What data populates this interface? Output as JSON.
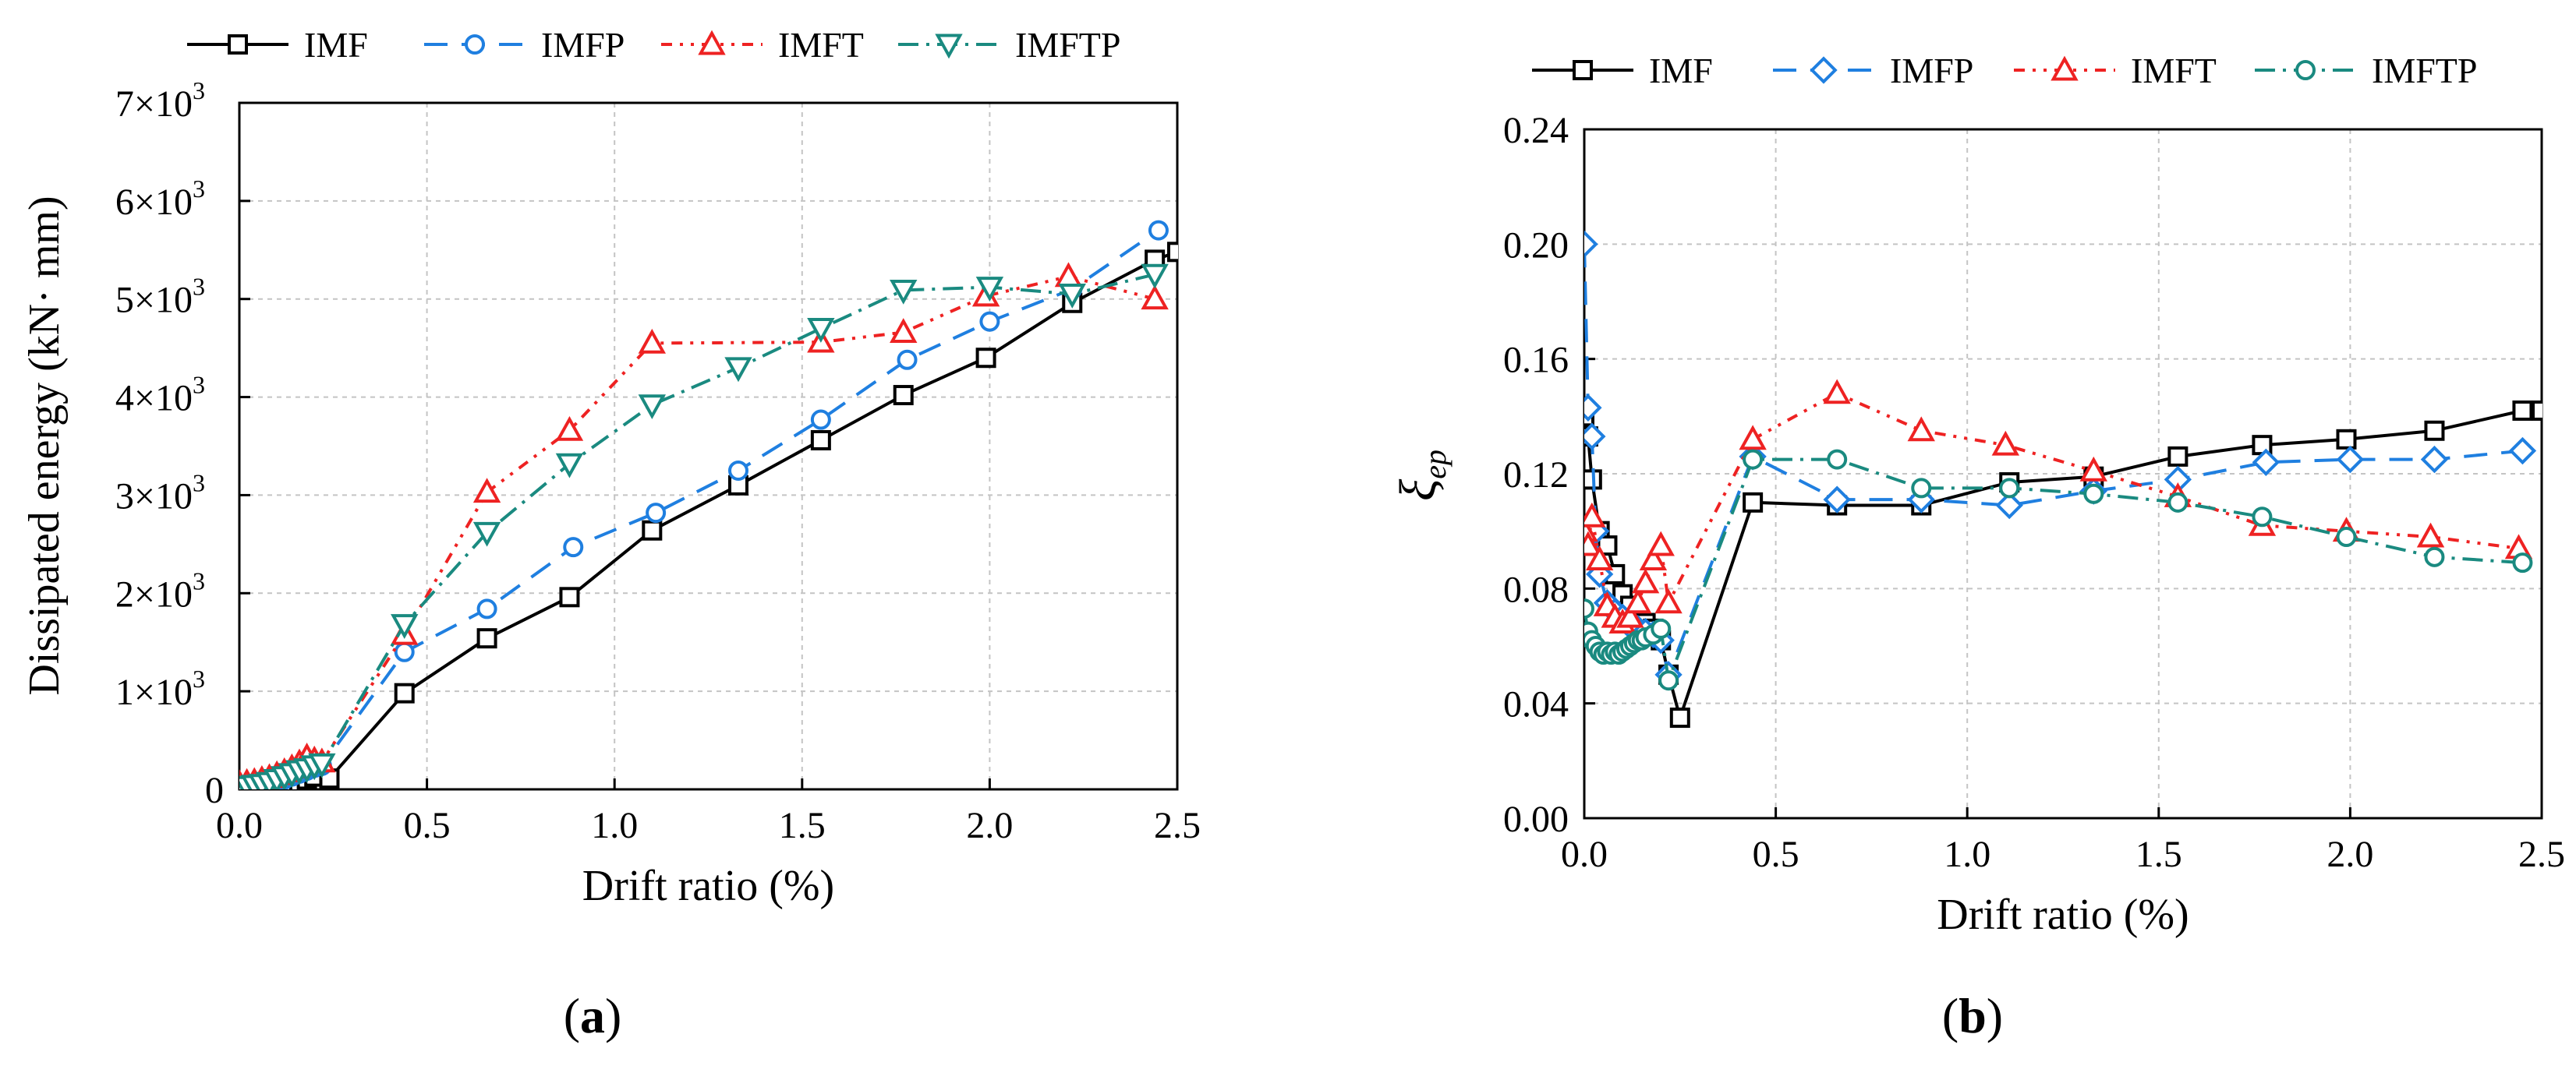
{
  "figure_labels": {
    "a": "(a)",
    "b": "(b)"
  },
  "chart_data": [
    {
      "type": "line",
      "panel": "a",
      "title": "",
      "xlabel": "Drift ratio (%)",
      "ylabel": "Dissipated energy (kN· mm)",
      "xlim": [
        0,
        2.5
      ],
      "ylim": [
        0,
        7000
      ],
      "grid": true,
      "legend_position": "top",
      "xticks": [
        0,
        0.5,
        1.0,
        1.5,
        2.0,
        2.5
      ],
      "xtick_labels": [
        "0.0",
        "0.5",
        "1.0",
        "1.5",
        "2.0",
        "2.5"
      ],
      "yticks": [
        0,
        1000,
        2000,
        3000,
        4000,
        5000,
        6000,
        7000
      ],
      "ytick_labels": [
        "0",
        "1×10",
        "2×10",
        "3×10",
        "4×10",
        "5×10",
        "6×10",
        "7×10"
      ],
      "ytick_exponent": "3",
      "series": [
        {
          "name": "IMF",
          "color": "#000000",
          "dash": "",
          "marker": "square",
          "x": [
            0,
            0.02,
            0.04,
            0.06,
            0.08,
            0.1,
            0.12,
            0.14,
            0.16,
            0.18,
            0.2,
            0.24,
            0.44,
            0.66,
            0.88,
            1.1,
            1.33,
            1.55,
            1.77,
            1.99,
            2.22,
            2.44,
            2.5
          ],
          "y": [
            0,
            0,
            0,
            0,
            0,
            0,
            10,
            30,
            60,
            100,
            130,
            110,
            980,
            1540,
            1960,
            2640,
            3100,
            3560,
            4020,
            4400,
            4960,
            5400,
            5480
          ]
        },
        {
          "name": "IMFP",
          "color": "#1f7fe0",
          "dash": "30 18",
          "marker": "circle",
          "x": [
            0,
            0.02,
            0.04,
            0.06,
            0.08,
            0.1,
            0.12,
            0.14,
            0.16,
            0.18,
            0.2,
            0.22,
            0.44,
            0.66,
            0.89,
            1.11,
            1.33,
            1.55,
            1.78,
            2.0,
            2.22,
            2.45
          ],
          "y": [
            10,
            20,
            30,
            40,
            60,
            80,
            100,
            130,
            160,
            190,
            220,
            240,
            1400,
            1840,
            2470,
            2820,
            3250,
            3770,
            4380,
            4770,
            5100,
            5700
          ]
        },
        {
          "name": "IMFT",
          "color": "#ee2222",
          "dash": "14 10 4 10 4 10",
          "marker": "triangle-up",
          "x": [
            0,
            0.02,
            0.04,
            0.06,
            0.08,
            0.1,
            0.12,
            0.14,
            0.16,
            0.18,
            0.2,
            0.22,
            0.44,
            0.66,
            0.88,
            1.1,
            1.55,
            1.77,
            1.99,
            2.21,
            2.44
          ],
          "y": [
            60,
            70,
            80,
            100,
            120,
            150,
            180,
            220,
            270,
            330,
            300,
            280,
            1580,
            3030,
            3660,
            4550,
            4560,
            4660,
            5030,
            5230,
            5000
          ]
        },
        {
          "name": "IMFTP",
          "color": "#1a8a80",
          "dash": "26 10 4 10",
          "marker": "triangle-down",
          "x": [
            0,
            0.02,
            0.04,
            0.06,
            0.08,
            0.1,
            0.12,
            0.14,
            0.16,
            0.18,
            0.2,
            0.22,
            0.44,
            0.66,
            0.88,
            1.1,
            1.33,
            1.55,
            1.77,
            2.0,
            2.22,
            2.44
          ],
          "y": [
            20,
            30,
            40,
            50,
            70,
            100,
            130,
            160,
            190,
            210,
            240,
            260,
            1680,
            2620,
            3320,
            3920,
            4300,
            4700,
            5090,
            5120,
            5050,
            5250
          ]
        }
      ]
    },
    {
      "type": "line",
      "panel": "b",
      "title": "",
      "xlabel": "Drift ratio (%)",
      "ylabel": "ξ",
      "ylabel_sub": "ep",
      "xlim": [
        0,
        2.5
      ],
      "ylim": [
        0,
        0.24
      ],
      "grid": true,
      "legend_position": "top",
      "xticks": [
        0,
        0.5,
        1.0,
        1.5,
        2.0,
        2.5
      ],
      "xtick_labels": [
        "0.0",
        "0.5",
        "1.0",
        "1.5",
        "2.0",
        "2.5"
      ],
      "yticks": [
        0,
        0.04,
        0.08,
        0.12,
        0.16,
        0.2,
        0.24
      ],
      "ytick_labels": [
        "0.00",
        "0.04",
        "0.08",
        "0.12",
        "0.16",
        "0.20",
        "0.24"
      ],
      "series": [
        {
          "name": "IMF",
          "color": "#000000",
          "dash": "",
          "marker": "square",
          "x": [
            0.0,
            0.01,
            0.02,
            0.04,
            0.06,
            0.08,
            0.1,
            0.12,
            0.14,
            0.16,
            0.18,
            0.2,
            0.22,
            0.25,
            0.44,
            0.66,
            0.88,
            1.11,
            1.33,
            1.55,
            1.77,
            1.99,
            2.22,
            2.45,
            2.5
          ],
          "y": [
            0.14,
            0.133,
            0.118,
            0.1,
            0.095,
            0.085,
            0.078,
            0.074,
            0.07,
            0.068,
            0.066,
            0.062,
            0.05,
            0.035,
            0.11,
            0.109,
            0.109,
            0.117,
            0.119,
            0.126,
            0.13,
            0.132,
            0.135,
            0.142,
            0.142
          ]
        },
        {
          "name": "IMFP",
          "color": "#1f7fe0",
          "dash": "30 18",
          "marker": "diamond",
          "x": [
            0.0,
            0.01,
            0.02,
            0.03,
            0.04,
            0.06,
            0.08,
            0.1,
            0.12,
            0.14,
            0.16,
            0.18,
            0.2,
            0.22,
            0.44,
            0.66,
            0.88,
            1.11,
            1.33,
            1.55,
            1.78,
            2.0,
            2.22,
            2.45
          ],
          "y": [
            0.2,
            0.143,
            0.133,
            0.1,
            0.085,
            0.075,
            0.072,
            0.07,
            0.067,
            0.066,
            0.065,
            0.064,
            0.062,
            0.05,
            0.126,
            0.111,
            0.111,
            0.109,
            0.114,
            0.118,
            0.124,
            0.125,
            0.125,
            0.128
          ]
        },
        {
          "name": "IMFT",
          "color": "#ee2222",
          "dash": "14 10 4 10 4 10",
          "marker": "triangle-up",
          "x": [
            0.0,
            0.01,
            0.02,
            0.04,
            0.06,
            0.08,
            0.1,
            0.12,
            0.14,
            0.16,
            0.18,
            0.2,
            0.22,
            0.44,
            0.66,
            0.88,
            1.1,
            1.33,
            1.55,
            1.77,
            1.99,
            2.21,
            2.44
          ],
          "y": [
            0.1,
            0.095,
            0.105,
            0.09,
            0.074,
            0.07,
            0.068,
            0.07,
            0.075,
            0.082,
            0.09,
            0.095,
            0.075,
            0.132,
            0.148,
            0.135,
            0.13,
            0.121,
            0.112,
            0.102,
            0.1,
            0.098,
            0.094
          ]
        },
        {
          "name": "IMFTP",
          "color": "#1a8a80",
          "dash": "26 10 4 10",
          "marker": "circle",
          "x": [
            0.0,
            0.01,
            0.02,
            0.03,
            0.04,
            0.05,
            0.06,
            0.07,
            0.08,
            0.09,
            0.1,
            0.11,
            0.12,
            0.13,
            0.14,
            0.15,
            0.16,
            0.18,
            0.2,
            0.22,
            0.44,
            0.66,
            0.88,
            1.11,
            1.33,
            1.55,
            1.77,
            1.99,
            2.22,
            2.45
          ],
          "y": [
            0.073,
            0.065,
            0.062,
            0.06,
            0.058,
            0.057,
            0.058,
            0.057,
            0.058,
            0.057,
            0.058,
            0.059,
            0.06,
            0.061,
            0.062,
            0.062,
            0.063,
            0.064,
            0.066,
            0.048,
            0.125,
            0.125,
            0.115,
            0.115,
            0.113,
            0.11,
            0.105,
            0.098,
            0.091,
            0.089
          ]
        }
      ]
    }
  ]
}
